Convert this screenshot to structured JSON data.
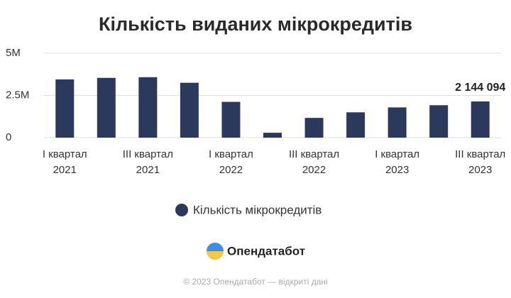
{
  "chart_data": {
    "type": "bar",
    "title": "Кількість виданих мікрокредитів",
    "categories": [
      "I квартал\n2021",
      null,
      "III квартал\n2021",
      null,
      "I квартал\n2022",
      null,
      "III квартал\n2022",
      null,
      "I квартал\n2023",
      null,
      "III квартал\n2023"
    ],
    "series": [
      {
        "name": "Кількість мікрокредитів",
        "color": "#2b3a5c",
        "values": [
          3450000,
          3540000,
          3580000,
          3250000,
          2120000,
          290000,
          1170000,
          1500000,
          1790000,
          1920000,
          2144094
        ],
        "value_labels": [
          null,
          null,
          null,
          null,
          null,
          null,
          null,
          null,
          null,
          null,
          "2 144 094"
        ]
      }
    ],
    "ylim": [
      0,
      5000000
    ],
    "yticks": [
      0,
      {
        "value": 2500000,
        "label": "2.5M"
      },
      {
        "value": 5000000,
        "label": "5M"
      }
    ],
    "grid": true
  },
  "footer": {
    "brand": "Опендатабот",
    "copyright": "© 2023 Опендатабот — відкриті дані"
  }
}
